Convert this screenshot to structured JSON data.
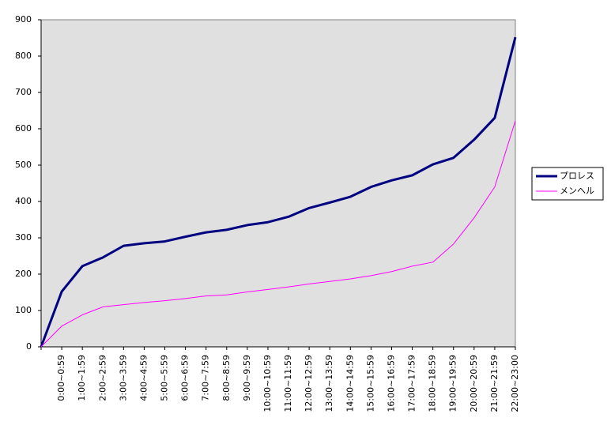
{
  "chart_data": {
    "type": "line",
    "categories": [
      null,
      "0:00~0:59",
      "1:00~1:59",
      "2:00~2:59",
      "3:00~3:59",
      "4:00~4:59",
      "5:00~5:59",
      "6:00~6:59",
      "7:00~7:59",
      "8:00~8:59",
      "9:00~9:59",
      "10:00~10:59",
      "11:00~11:59",
      "12:00~12:59",
      "13:00~13:59",
      "14:00~14:59",
      "15:00~15:59",
      "16:00~16:59",
      "17:00~17:59",
      "18:00~18:59",
      "19:00~19:59",
      "20:00~20:59",
      "21:00~21:59",
      "22:00~23:00"
    ],
    "series": [
      {
        "name": "プロレス",
        "color": "#000080",
        "line_width": 3,
        "values": [
          0,
          152,
          222,
          246,
          278,
          285,
          290,
          303,
          315,
          322,
          335,
          343,
          358,
          382,
          397,
          413,
          440,
          458,
          472,
          502,
          520,
          570,
          630,
          852
        ]
      },
      {
        "name": "メンヘル",
        "color": "#ff00ff",
        "line_width": 1,
        "values": [
          0,
          57,
          88,
          110,
          116,
          122,
          127,
          133,
          140,
          143,
          151,
          158,
          165,
          173,
          180,
          187,
          196,
          207,
          222,
          233,
          283,
          355,
          440,
          622
        ]
      }
    ],
    "ylim": [
      0,
      900
    ],
    "yticks": [
      0,
      100,
      200,
      300,
      400,
      500,
      600,
      700,
      800,
      900
    ],
    "plot_background": "#e0e0e0",
    "legend": "right"
  }
}
